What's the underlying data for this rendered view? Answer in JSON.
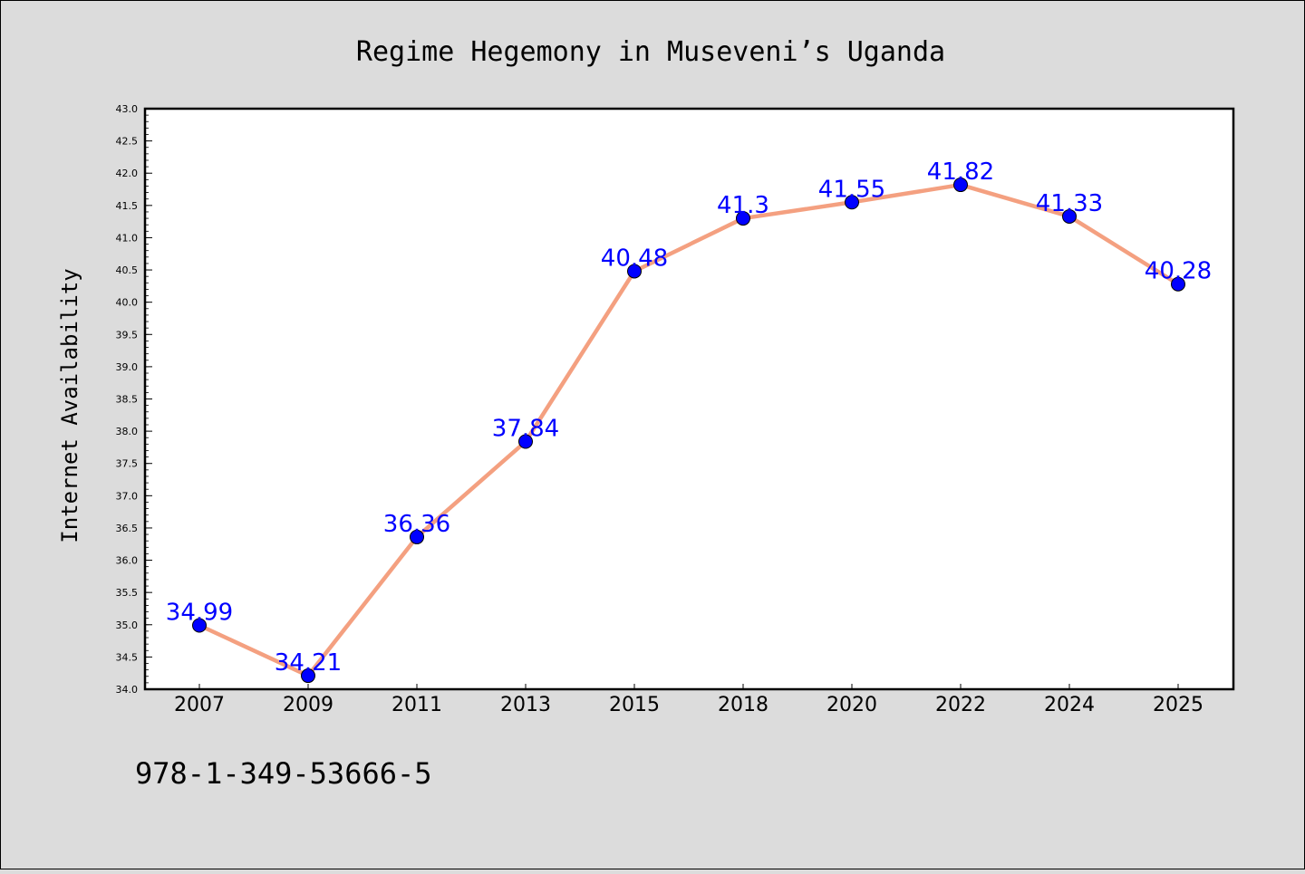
{
  "chart_data": {
    "type": "line",
    "title": "Regime Hegemony in Museveni’s Uganda",
    "ylabel": "Internet Availability",
    "xlabel": "",
    "categories": [
      "2007",
      "2009",
      "2011",
      "2013",
      "2015",
      "2018",
      "2020",
      "2022",
      "2024",
      "2025"
    ],
    "values": [
      34.99,
      34.21,
      36.36,
      37.84,
      40.48,
      41.3,
      41.55,
      41.82,
      41.33,
      40.28
    ],
    "data_labels": [
      "34.99",
      "34.21",
      "36.36",
      "37.84",
      "40.48",
      "41.3",
      "41.55",
      "41.82",
      "41.33",
      "40.28"
    ],
    "ylim": [
      34.0,
      43.0
    ],
    "y_ticks": [
      "34.0",
      "34.5",
      "35.0",
      "35.5",
      "36.0",
      "36.5",
      "37.0",
      "37.5",
      "38.0",
      "38.5",
      "39.0",
      "39.5",
      "40.0",
      "40.5",
      "41.0",
      "41.5",
      "42.0",
      "42.5",
      "43.0"
    ],
    "grid": false,
    "legend": "none",
    "colors": {
      "line": "#f4a080",
      "marker": "#0000ff",
      "data_label": "#0000ff",
      "background": "#dcdcdc",
      "plot_background": "#ffffff"
    }
  },
  "footer": {
    "isbn": "978-1-349-53666-5"
  }
}
